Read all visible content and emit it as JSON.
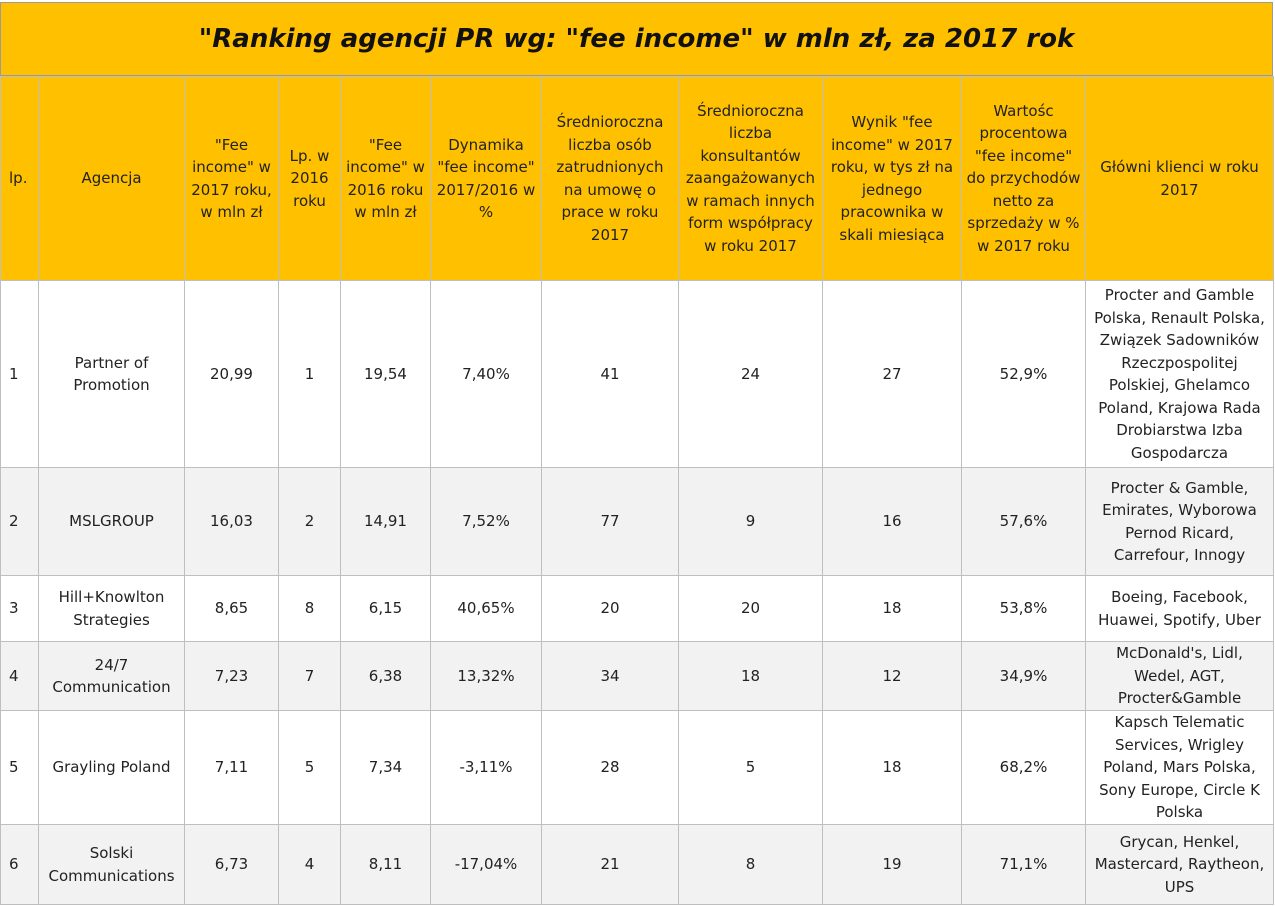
{
  "title": "\"Ranking agencji PR wg: \"fee income\" w mln zł, za 2017 rok",
  "headers": [
    "lp.",
    "Agencja",
    "\"Fee income\" w 2017 roku, w mln zł",
    "Lp. w 2016 roku",
    "\"Fee income\" w 2016 roku w mln zł",
    "Dynamika \"fee income\" 2017/2016 w %",
    "Średnioroczna liczba osób zatrudnionych na umowę o prace w roku 2017",
    "Średnioroczna liczba konsultantów zaangażowanych w ramach innych form współpracy w roku 2017",
    "Wynik \"fee income\" w 2017 roku, w tys zł na jednego pracownika w skali miesiąca",
    "Wartośc procentowa \"fee income\" do przychodów netto za sprzedaży w % w 2017 roku",
    "Główni klienci w roku 2017"
  ],
  "rows": [
    {
      "lp": "1",
      "agency": "Partner of Promotion",
      "fee2017": "20,99",
      "lp2016": "1",
      "fee2016": "19,54",
      "dynamics": "7,40%",
      "employees": "41",
      "consultants": "24",
      "per_employee": "27",
      "share": "52,9%",
      "clients": "Procter and Gamble Polska, Renault Polska, Związek Sadowników Rzeczpospolitej Polskiej, Ghelamco Poland, Krajowa Rada Drobiarstwa Izba Gospodarcza"
    },
    {
      "lp": "2",
      "agency": "MSLGROUP",
      "fee2017": "16,03",
      "lp2016": "2",
      "fee2016": "14,91",
      "dynamics": "7,52%",
      "employees": "77",
      "consultants": "9",
      "per_employee": "16",
      "share": "57,6%",
      "clients": "Procter & Gamble, Emirates, Wyborowa Pernod Ricard, Carrefour, Innogy"
    },
    {
      "lp": "3",
      "agency": "Hill+Knowlton Strategies",
      "fee2017": "8,65",
      "lp2016": "8",
      "fee2016": "6,15",
      "dynamics": "40,65%",
      "employees": "20",
      "consultants": "20",
      "per_employee": "18",
      "share": "53,8%",
      "clients": "Boeing, Facebook, Huawei, Spotify, Uber"
    },
    {
      "lp": "4",
      "agency": "24/7 Communication",
      "fee2017": "7,23",
      "lp2016": "7",
      "fee2016": "6,38",
      "dynamics": "13,32%",
      "employees": "34",
      "consultants": "18",
      "per_employee": "12",
      "share": "34,9%",
      "clients": "McDonald's, Lidl, Wedel, AGT, Procter&Gamble"
    },
    {
      "lp": "5",
      "agency": "Grayling Poland",
      "fee2017": "7,11",
      "lp2016": "5",
      "fee2016": "7,34",
      "dynamics": "-3,11%",
      "employees": "28",
      "consultants": "5",
      "per_employee": "18",
      "share": "68,2%",
      "clients": "Kapsch Telematic Services, Wrigley Poland, Mars Polska, Sony Europe, Circle K Polska"
    },
    {
      "lp": "6",
      "agency": "Solski Communications",
      "fee2017": "6,73",
      "lp2016": "4",
      "fee2016": "8,11",
      "dynamics": "-17,04%",
      "employees": "21",
      "consultants": "8",
      "per_employee": "19",
      "share": "71,1%",
      "clients": "Grycan, Henkel, Mastercard, Raytheon, UPS"
    }
  ]
}
